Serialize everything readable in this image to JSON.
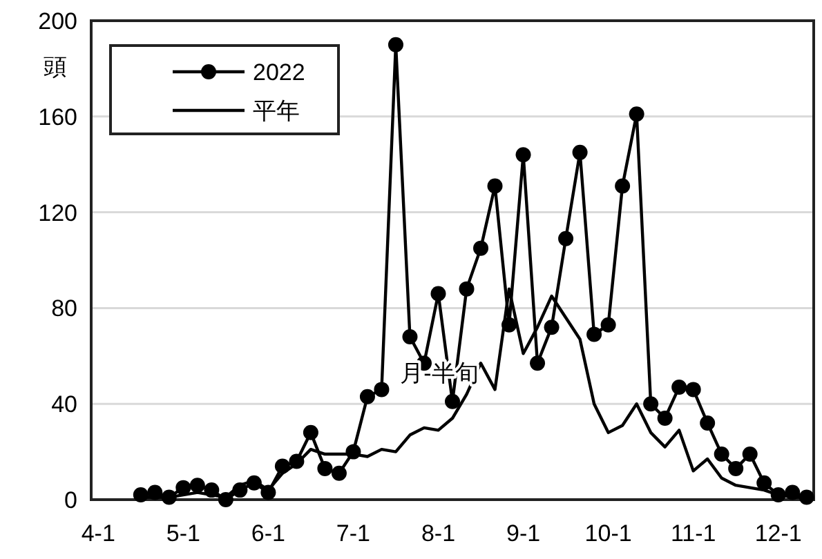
{
  "chart_data": {
    "type": "line",
    "xlabel": "月-半旬",
    "ylabel": "頭",
    "categories": [
      "4-1",
      null,
      null,
      null,
      null,
      null,
      "5-1",
      null,
      null,
      null,
      null,
      null,
      "6-1",
      null,
      null,
      null,
      null,
      null,
      "7-1",
      null,
      null,
      null,
      null,
      null,
      "8-1",
      null,
      null,
      null,
      null,
      null,
      "9-1",
      null,
      null,
      null,
      null,
      null,
      "10-1",
      null,
      null,
      null,
      null,
      null,
      "11-1",
      null,
      null,
      null,
      null,
      null,
      "12-1",
      null,
      null
    ],
    "series": [
      {
        "name": "2022",
        "color": "#000000",
        "marker": "circle",
        "values": [
          null,
          null,
          null,
          2,
          3,
          1,
          5,
          6,
          4,
          0,
          4,
          7,
          3,
          14,
          16,
          28,
          13,
          11,
          20,
          43,
          46,
          190,
          68,
          57,
          86,
          41,
          88,
          105,
          131,
          73,
          144,
          57,
          72,
          109,
          145,
          69,
          73,
          131,
          161,
          40,
          34,
          47,
          46,
          32,
          19,
          13,
          19,
          7,
          2,
          3,
          1
        ]
      },
      {
        "name": "平年",
        "color": "#000000",
        "marker": "none",
        "values": [
          null,
          null,
          null,
          1,
          1,
          1,
          2,
          3,
          2,
          1,
          6,
          8,
          4,
          11,
          15,
          21,
          19,
          19,
          19,
          18,
          21,
          20,
          27,
          30,
          29,
          34,
          44,
          57,
          46,
          88,
          61,
          72,
          85,
          76,
          67,
          40,
          28,
          31,
          40,
          28,
          22,
          29,
          12,
          17,
          9,
          6,
          5,
          4,
          2,
          1,
          1
        ]
      }
    ],
    "ylim": [
      0,
      200
    ],
    "yticks": [
      0,
      40,
      80,
      120,
      160,
      200
    ],
    "grid": "y",
    "legend": "top left",
    "line_style": "solid"
  }
}
